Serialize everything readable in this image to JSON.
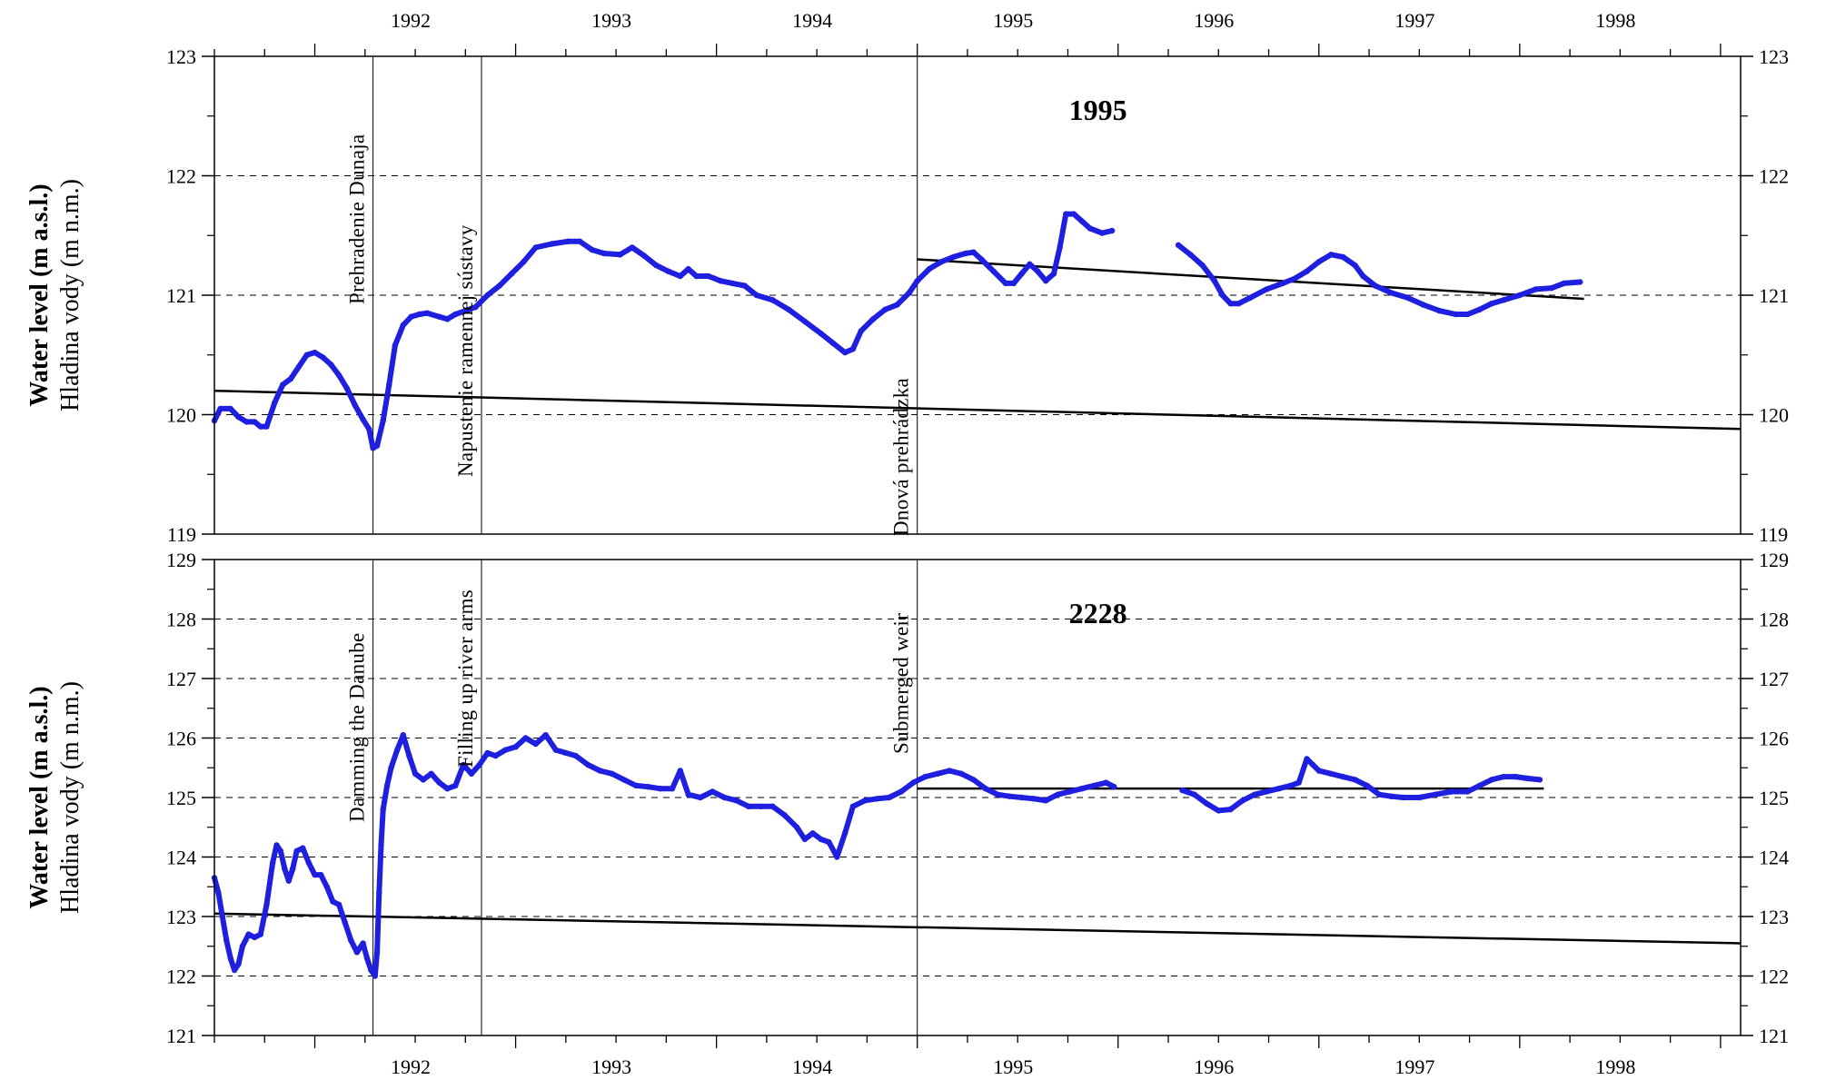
{
  "chart_data": {
    "type": "scatter",
    "x_axis": {
      "range": [
        1991.5,
        1999.1
      ],
      "tick_labels_top": [
        "1992",
        "1993",
        "1994",
        "1995",
        "1996",
        "1997",
        "1998"
      ],
      "tick_labels_bottom": [
        "1992",
        "1993",
        "1994",
        "1995",
        "1996",
        "1997",
        "1998"
      ]
    },
    "events": [
      {
        "x": 1992.29,
        "label_top": "Prehradenie Dunaja",
        "label_bottom": "Damming the Danube"
      },
      {
        "x": 1992.83,
        "label_top": "Napustenie ramennej sústavy",
        "label_bottom": "Filling up river arms"
      },
      {
        "x": 1995.0,
        "label_top": "Dnová prehrádzka",
        "label_bottom": "Submerged weir"
      }
    ],
    "panels": [
      {
        "title": "1995",
        "ylabel_bold": "Water level (m a.s.l.)",
        "ylabel_regular": "Hladina vody (m n.m.)",
        "ylim": [
          119,
          123
        ],
        "ytick_labels": [
          "119",
          "120",
          "121",
          "122",
          "123"
        ],
        "grid": "horizontal dashed",
        "series_color": "#1f1fe0",
        "series": [
          [
            1991.5,
            119.95
          ],
          [
            1991.53,
            120.05
          ],
          [
            1991.58,
            120.05
          ],
          [
            1991.62,
            119.98
          ],
          [
            1991.66,
            119.94
          ],
          [
            1991.7,
            119.94
          ],
          [
            1991.73,
            119.9
          ],
          [
            1991.76,
            119.9
          ],
          [
            1991.8,
            120.1
          ],
          [
            1991.84,
            120.25
          ],
          [
            1991.88,
            120.3
          ],
          [
            1991.92,
            120.4
          ],
          [
            1991.96,
            120.5
          ],
          [
            1992.0,
            120.52
          ],
          [
            1992.04,
            120.48
          ],
          [
            1992.08,
            120.42
          ],
          [
            1992.12,
            120.33
          ],
          [
            1992.16,
            120.22
          ],
          [
            1992.2,
            120.08
          ],
          [
            1992.24,
            119.96
          ],
          [
            1992.27,
            119.88
          ],
          [
            1992.29,
            119.72
          ],
          [
            1992.31,
            119.74
          ],
          [
            1992.34,
            119.95
          ],
          [
            1992.37,
            120.25
          ],
          [
            1992.4,
            120.58
          ],
          [
            1992.44,
            120.75
          ],
          [
            1992.48,
            120.82
          ],
          [
            1992.52,
            120.84
          ],
          [
            1992.56,
            120.85
          ],
          [
            1992.62,
            120.82
          ],
          [
            1992.66,
            120.8
          ],
          [
            1992.7,
            120.84
          ],
          [
            1992.75,
            120.87
          ],
          [
            1992.8,
            120.9
          ],
          [
            1992.86,
            121.0
          ],
          [
            1992.92,
            121.08
          ],
          [
            1992.98,
            121.18
          ],
          [
            1993.04,
            121.28
          ],
          [
            1993.1,
            121.4
          ],
          [
            1993.18,
            121.43
          ],
          [
            1993.26,
            121.45
          ],
          [
            1993.32,
            121.45
          ],
          [
            1993.38,
            121.38
          ],
          [
            1993.44,
            121.35
          ],
          [
            1993.52,
            121.34
          ],
          [
            1993.58,
            121.4
          ],
          [
            1993.64,
            121.33
          ],
          [
            1993.7,
            121.25
          ],
          [
            1993.76,
            121.2
          ],
          [
            1993.82,
            121.16
          ],
          [
            1993.86,
            121.22
          ],
          [
            1993.9,
            121.16
          ],
          [
            1993.96,
            121.16
          ],
          [
            1994.02,
            121.12
          ],
          [
            1994.08,
            121.1
          ],
          [
            1994.14,
            121.08
          ],
          [
            1994.2,
            121.0
          ],
          [
            1994.28,
            120.96
          ],
          [
            1994.36,
            120.88
          ],
          [
            1994.44,
            120.78
          ],
          [
            1994.52,
            120.68
          ],
          [
            1994.58,
            120.6
          ],
          [
            1994.64,
            120.52
          ],
          [
            1994.68,
            120.55
          ],
          [
            1994.72,
            120.7
          ],
          [
            1994.78,
            120.8
          ],
          [
            1994.84,
            120.88
          ],
          [
            1994.9,
            120.92
          ],
          [
            1994.96,
            121.02
          ],
          [
            1995.0,
            121.12
          ],
          [
            1995.06,
            121.22
          ],
          [
            1995.12,
            121.28
          ],
          [
            1995.18,
            121.32
          ],
          [
            1995.24,
            121.35
          ],
          [
            1995.28,
            121.36
          ],
          [
            1995.32,
            121.3
          ],
          [
            1995.38,
            121.2
          ],
          [
            1995.44,
            121.1
          ],
          [
            1995.48,
            121.1
          ],
          [
            1995.52,
            121.18
          ],
          [
            1995.56,
            121.26
          ],
          [
            1995.6,
            121.2
          ],
          [
            1995.64,
            121.12
          ],
          [
            1995.68,
            121.18
          ],
          [
            1995.71,
            121.4
          ],
          [
            1995.74,
            121.68
          ],
          [
            1995.78,
            121.68
          ],
          [
            1995.82,
            121.62
          ],
          [
            1995.86,
            121.56
          ],
          [
            1995.92,
            121.52
          ],
          [
            1995.97,
            121.54
          ],
          [
            1996.3,
            121.42
          ],
          [
            1996.36,
            121.34
          ],
          [
            1996.42,
            121.25
          ],
          [
            1996.48,
            121.12
          ],
          [
            1996.52,
            121.0
          ],
          [
            1996.56,
            120.93
          ],
          [
            1996.6,
            120.93
          ],
          [
            1996.66,
            120.98
          ],
          [
            1996.74,
            121.05
          ],
          [
            1996.82,
            121.1
          ],
          [
            1996.88,
            121.14
          ],
          [
            1996.94,
            121.2
          ],
          [
            1997.0,
            121.28
          ],
          [
            1997.06,
            121.34
          ],
          [
            1997.12,
            121.32
          ],
          [
            1997.18,
            121.25
          ],
          [
            1997.22,
            121.16
          ],
          [
            1997.28,
            121.08
          ],
          [
            1997.36,
            121.02
          ],
          [
            1997.44,
            120.98
          ],
          [
            1997.52,
            120.92
          ],
          [
            1997.6,
            120.87
          ],
          [
            1997.68,
            120.84
          ],
          [
            1997.74,
            120.84
          ],
          [
            1997.8,
            120.88
          ],
          [
            1997.86,
            120.93
          ],
          [
            1997.92,
            120.96
          ],
          [
            1998.0,
            121.0
          ],
          [
            1998.08,
            121.05
          ],
          [
            1998.16,
            121.06
          ],
          [
            1998.22,
            121.1
          ],
          [
            1998.3,
            121.11
          ]
        ],
        "trend_lines": [
          {
            "x": [
              1991.5,
              1999.1
            ],
            "y": [
              120.2,
              119.88
            ]
          },
          {
            "x": [
              1995.0,
              1998.32
            ],
            "y": [
              121.3,
              120.97
            ]
          }
        ]
      },
      {
        "title": "2228",
        "ylabel_bold": "Water level (m a.s.l.)",
        "ylabel_regular": "Hladina vody (m n.m.)",
        "ylim": [
          121,
          129
        ],
        "ytick_labels": [
          "121",
          "122",
          "123",
          "124",
          "125",
          "126",
          "127",
          "128",
          "129"
        ],
        "grid": "horizontal dashed",
        "series_color": "#1f1fe0",
        "series": [
          [
            1991.5,
            123.65
          ],
          [
            1991.52,
            123.4
          ],
          [
            1991.54,
            123.0
          ],
          [
            1991.56,
            122.6
          ],
          [
            1991.58,
            122.3
          ],
          [
            1991.6,
            122.1
          ],
          [
            1991.62,
            122.2
          ],
          [
            1991.64,
            122.5
          ],
          [
            1991.67,
            122.7
          ],
          [
            1991.7,
            122.65
          ],
          [
            1991.73,
            122.7
          ],
          [
            1991.76,
            123.2
          ],
          [
            1991.79,
            123.9
          ],
          [
            1991.81,
            124.2
          ],
          [
            1991.83,
            124.1
          ],
          [
            1991.85,
            123.8
          ],
          [
            1991.87,
            123.6
          ],
          [
            1991.89,
            123.8
          ],
          [
            1991.91,
            124.1
          ],
          [
            1991.94,
            124.15
          ],
          [
            1991.97,
            123.9
          ],
          [
            1992.0,
            123.7
          ],
          [
            1992.03,
            123.7
          ],
          [
            1992.06,
            123.5
          ],
          [
            1992.09,
            123.25
          ],
          [
            1992.12,
            123.2
          ],
          [
            1992.15,
            122.9
          ],
          [
            1992.18,
            122.6
          ],
          [
            1992.21,
            122.4
          ],
          [
            1992.24,
            122.55
          ],
          [
            1992.26,
            122.3
          ],
          [
            1992.28,
            122.1
          ],
          [
            1992.3,
            122.0
          ],
          [
            1992.31,
            122.4
          ],
          [
            1992.32,
            123.4
          ],
          [
            1992.33,
            124.2
          ],
          [
            1992.34,
            124.8
          ],
          [
            1992.36,
            125.2
          ],
          [
            1992.38,
            125.5
          ],
          [
            1992.41,
            125.8
          ],
          [
            1992.44,
            126.05
          ],
          [
            1992.47,
            125.7
          ],
          [
            1992.5,
            125.4
          ],
          [
            1992.54,
            125.3
          ],
          [
            1992.58,
            125.4
          ],
          [
            1992.62,
            125.25
          ],
          [
            1992.66,
            125.15
          ],
          [
            1992.7,
            125.2
          ],
          [
            1992.74,
            125.55
          ],
          [
            1992.78,
            125.4
          ],
          [
            1992.82,
            125.55
          ],
          [
            1992.86,
            125.75
          ],
          [
            1992.9,
            125.7
          ],
          [
            1992.95,
            125.8
          ],
          [
            1993.0,
            125.85
          ],
          [
            1993.05,
            126.0
          ],
          [
            1993.1,
            125.9
          ],
          [
            1993.15,
            126.05
          ],
          [
            1993.2,
            125.8
          ],
          [
            1993.25,
            125.75
          ],
          [
            1993.3,
            125.7
          ],
          [
            1993.36,
            125.55
          ],
          [
            1993.42,
            125.45
          ],
          [
            1993.48,
            125.4
          ],
          [
            1993.54,
            125.3
          ],
          [
            1993.6,
            125.2
          ],
          [
            1993.66,
            125.18
          ],
          [
            1993.72,
            125.15
          ],
          [
            1993.78,
            125.15
          ],
          [
            1993.82,
            125.45
          ],
          [
            1993.86,
            125.05
          ],
          [
            1993.92,
            125.0
          ],
          [
            1993.98,
            125.1
          ],
          [
            1994.04,
            125.0
          ],
          [
            1994.1,
            124.95
          ],
          [
            1994.16,
            124.85
          ],
          [
            1994.22,
            124.85
          ],
          [
            1994.28,
            124.85
          ],
          [
            1994.34,
            124.7
          ],
          [
            1994.4,
            124.5
          ],
          [
            1994.44,
            124.3
          ],
          [
            1994.48,
            124.4
          ],
          [
            1994.52,
            124.3
          ],
          [
            1994.56,
            124.25
          ],
          [
            1994.6,
            124.0
          ],
          [
            1994.64,
            124.4
          ],
          [
            1994.68,
            124.85
          ],
          [
            1994.74,
            124.95
          ],
          [
            1994.8,
            124.98
          ],
          [
            1994.86,
            125.0
          ],
          [
            1994.92,
            125.1
          ],
          [
            1994.98,
            125.25
          ],
          [
            1995.04,
            125.35
          ],
          [
            1995.1,
            125.4
          ],
          [
            1995.16,
            125.45
          ],
          [
            1995.22,
            125.4
          ],
          [
            1995.28,
            125.3
          ],
          [
            1995.34,
            125.15
          ],
          [
            1995.4,
            125.05
          ],
          [
            1995.46,
            125.02
          ],
          [
            1995.52,
            125.0
          ],
          [
            1995.58,
            124.98
          ],
          [
            1995.64,
            124.95
          ],
          [
            1995.7,
            125.05
          ],
          [
            1995.76,
            125.1
          ],
          [
            1995.82,
            125.15
          ],
          [
            1995.88,
            125.2
          ],
          [
            1995.94,
            125.25
          ],
          [
            1995.98,
            125.18
          ],
          [
            1996.32,
            125.12
          ],
          [
            1996.38,
            125.05
          ],
          [
            1996.44,
            124.9
          ],
          [
            1996.5,
            124.78
          ],
          [
            1996.56,
            124.8
          ],
          [
            1996.62,
            124.95
          ],
          [
            1996.68,
            125.05
          ],
          [
            1996.74,
            125.1
          ],
          [
            1996.8,
            125.15
          ],
          [
            1996.86,
            125.2
          ],
          [
            1996.9,
            125.25
          ],
          [
            1996.94,
            125.65
          ],
          [
            1996.97,
            125.55
          ],
          [
            1997.0,
            125.45
          ],
          [
            1997.06,
            125.4
          ],
          [
            1997.12,
            125.35
          ],
          [
            1997.18,
            125.3
          ],
          [
            1997.24,
            125.2
          ],
          [
            1997.3,
            125.05
          ],
          [
            1997.36,
            125.02
          ],
          [
            1997.42,
            125.0
          ],
          [
            1997.5,
            125.0
          ],
          [
            1997.58,
            125.05
          ],
          [
            1997.66,
            125.1
          ],
          [
            1997.74,
            125.1
          ],
          [
            1997.8,
            125.2
          ],
          [
            1997.86,
            125.3
          ],
          [
            1997.92,
            125.35
          ],
          [
            1997.98,
            125.35
          ],
          [
            1998.04,
            125.32
          ],
          [
            1998.1,
            125.3
          ]
        ],
        "trend_lines": [
          {
            "x": [
              1991.5,
              1999.1
            ],
            "y": [
              123.05,
              122.55
            ]
          },
          {
            "x": [
              1995.0,
              1998.12
            ],
            "y": [
              125.15,
              125.15
            ]
          }
        ]
      }
    ]
  }
}
